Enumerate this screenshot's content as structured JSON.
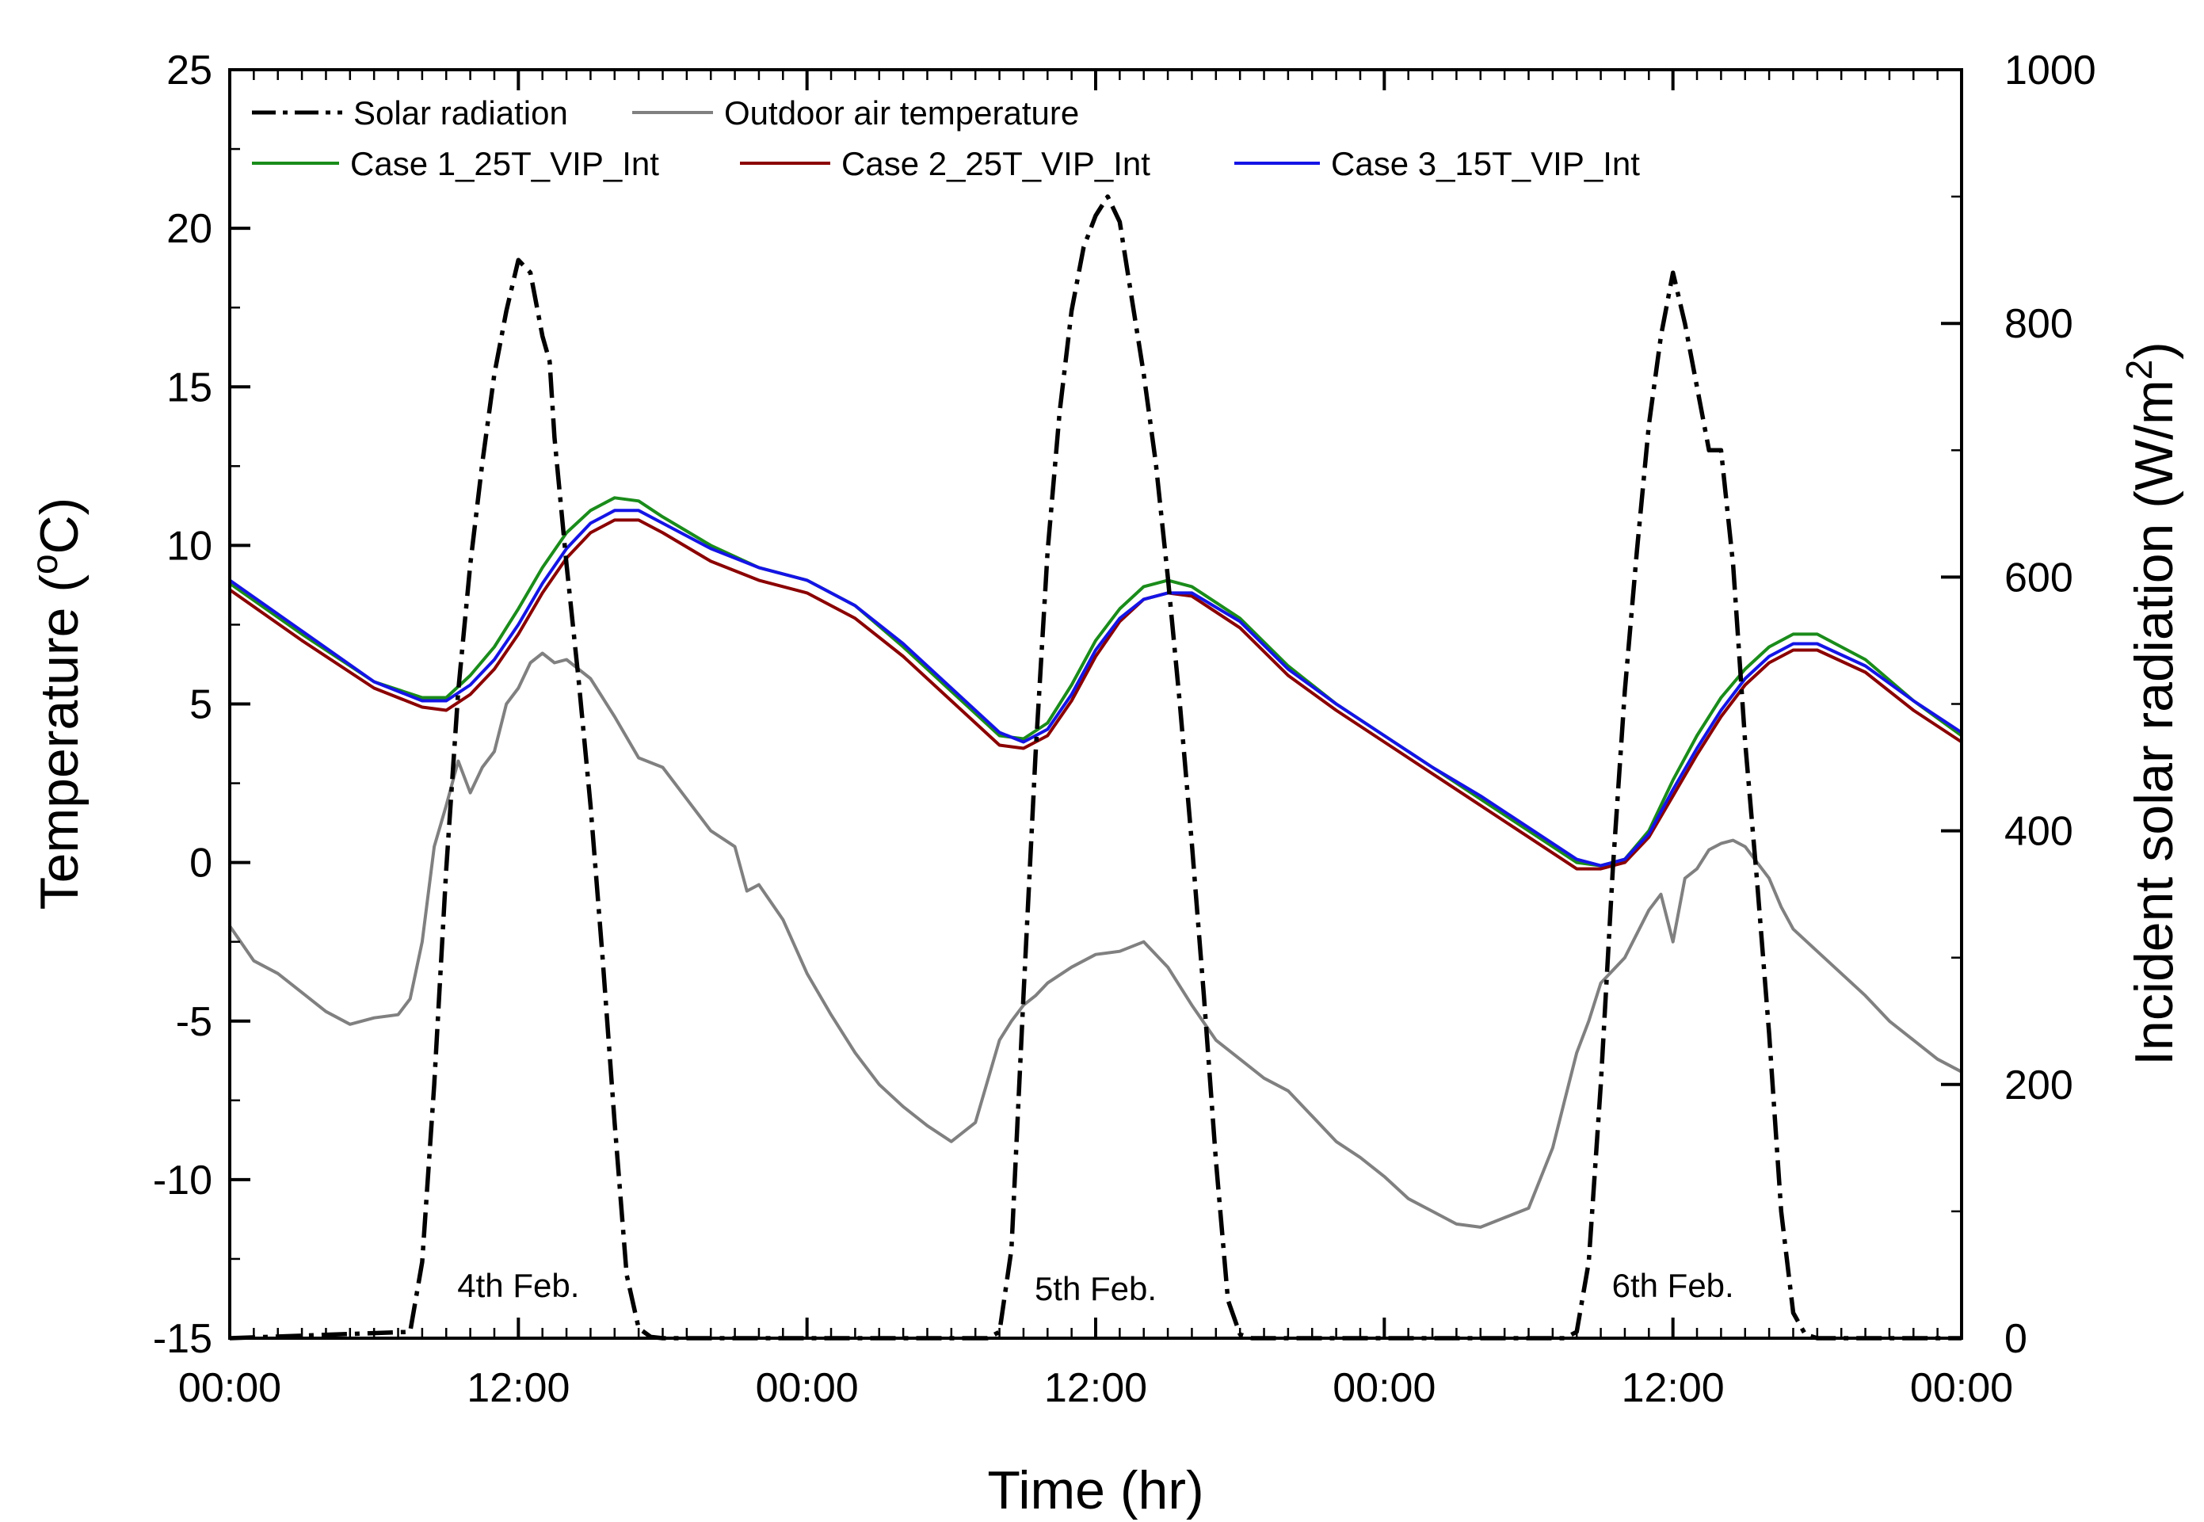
{
  "chart_data": {
    "type": "line",
    "title": "",
    "xlabel": "Time (hr)",
    "ylabel": "Temperature (°C)",
    "ylabel_parts": {
      "prefix": "Temperature (",
      "sup": "o",
      "suffix": "C)"
    },
    "y2label": "Incident solar radiation (W/m2)",
    "y2label_parts": {
      "prefix": "Incident solar radiation (W/m",
      "sup": "2",
      "suffix": ")"
    },
    "xlim": [
      0,
      72
    ],
    "ylim": [
      -15,
      25
    ],
    "y2lim": [
      0,
      1000
    ],
    "x_ticks": [
      0,
      12,
      24,
      36,
      48,
      60,
      72
    ],
    "x_tick_labels": [
      "00:00",
      "12:00",
      "00:00",
      "12:00",
      "00:00",
      "12:00",
      "00:00"
    ],
    "y_ticks": [
      -15,
      -10,
      -5,
      0,
      5,
      10,
      15,
      20,
      25
    ],
    "y_tick_labels": [
      "-15",
      "-10",
      "-5",
      "0",
      "5",
      "10",
      "15",
      "20",
      "25"
    ],
    "y2_ticks": [
      0,
      200,
      400,
      600,
      800,
      1000
    ],
    "y2_tick_labels": [
      "0",
      "200",
      "400",
      "600",
      "800",
      "1000"
    ],
    "grid": false,
    "legend_position": "top-left",
    "annotations": [
      {
        "text": "4th Feb.",
        "x": 12,
        "y": -13.7
      },
      {
        "text": "5th Feb.",
        "x": 36,
        "y": -13.8
      },
      {
        "text": "6th Feb.",
        "x": 60,
        "y": -13.7
      }
    ],
    "series": [
      {
        "name": "Solar radiation",
        "axis": "right",
        "color": "#000000",
        "style": "dash-dot",
        "x": [
          0,
          7.5,
          8,
          8.5,
          9,
          9.5,
          10,
          10.5,
          11,
          11.5,
          12,
          12.5,
          13,
          13.3,
          13.5,
          14,
          14.5,
          15,
          15.5,
          16,
          16.5,
          17,
          17.5,
          18,
          18.5,
          31.5,
          32,
          32.5,
          33,
          33.5,
          34,
          34.5,
          35,
          35.5,
          36,
          36.5,
          37,
          37.5,
          38,
          38.5,
          39,
          39.5,
          40,
          40.5,
          41,
          41.5,
          42,
          42.5,
          55.5,
          56,
          56.5,
          57,
          57.5,
          58,
          58.5,
          59,
          59.5,
          60,
          60.5,
          61,
          61.5,
          62,
          62.5,
          63,
          63.5,
          64,
          64.5,
          65,
          65.5,
          66,
          66.5,
          72
        ],
        "y": [
          0,
          5,
          60,
          200,
          370,
          510,
          610,
          690,
          760,
          810,
          850,
          840,
          790,
          770,
          710,
          610,
          520,
          420,
          300,
          170,
          50,
          8,
          1,
          0,
          0,
          0,
          5,
          70,
          270,
          460,
          620,
          730,
          810,
          860,
          885,
          900,
          880,
          820,
          760,
          690,
          600,
          500,
          390,
          270,
          140,
          30,
          3,
          0,
          0,
          5,
          60,
          200,
          370,
          510,
          620,
          720,
          790,
          840,
          800,
          750,
          700,
          700,
          610,
          470,
          360,
          240,
          100,
          20,
          3,
          0,
          0,
          0
        ]
      },
      {
        "name": "Outdoor air temperature",
        "axis": "left",
        "color": "#808080",
        "style": "solid",
        "x": [
          0,
          1,
          2,
          3,
          4,
          5,
          6,
          7,
          7.5,
          8,
          8.5,
          9,
          9.5,
          10,
          10.5,
          11,
          11.5,
          12,
          12.5,
          13,
          13.5,
          14,
          15,
          16,
          17,
          18,
          19,
          20,
          21,
          21.5,
          22,
          23,
          24,
          25,
          26,
          27,
          28,
          29,
          30,
          31,
          32,
          32.5,
          33,
          33.5,
          34,
          35,
          36,
          37,
          38,
          39,
          40,
          41,
          42,
          43,
          44,
          45,
          46,
          47,
          48,
          49,
          50,
          51,
          52,
          53,
          54,
          55,
          55.5,
          56,
          56.5,
          57,
          58,
          59,
          59.5,
          60,
          60.5,
          61,
          61.5,
          62,
          62.5,
          63,
          63.5,
          64,
          64.5,
          65,
          66,
          67,
          68,
          69,
          70,
          71,
          72
        ],
        "y": [
          -2.0,
          -3.1,
          -3.5,
          -4.1,
          -4.7,
          -5.1,
          -4.9,
          -4.8,
          -4.3,
          -2.5,
          0.5,
          1.8,
          3.2,
          2.2,
          3.0,
          3.5,
          5.0,
          5.5,
          6.3,
          6.6,
          6.3,
          6.4,
          5.8,
          4.6,
          3.3,
          3.0,
          2.0,
          1.0,
          0.5,
          -0.9,
          -0.7,
          -1.8,
          -3.5,
          -4.8,
          -6.0,
          -7.0,
          -7.7,
          -8.3,
          -8.8,
          -8.2,
          -5.6,
          -5.0,
          -4.5,
          -4.2,
          -3.8,
          -3.3,
          -2.9,
          -2.8,
          -2.5,
          -3.3,
          -4.5,
          -5.6,
          -6.2,
          -6.8,
          -7.2,
          -8.0,
          -8.8,
          -9.3,
          -9.9,
          -10.6,
          -11.0,
          -11.4,
          -11.5,
          -11.2,
          -10.9,
          -9.0,
          -7.5,
          -6.0,
          -5.0,
          -3.8,
          -3.0,
          -1.5,
          -1.0,
          -2.5,
          -0.5,
          -0.2,
          0.4,
          0.6,
          0.7,
          0.5,
          0,
          -0.5,
          -1.4,
          -2.1,
          -2.8,
          -3.5,
          -4.2,
          -5.0,
          -5.6,
          -6.2,
          -6.6
        ]
      },
      {
        "name": "Case 1_25T_VIP_Int",
        "axis": "left",
        "color": "#1a8c1a",
        "style": "solid",
        "x": [
          0,
          3,
          6,
          8,
          9,
          10,
          11,
          12,
          13,
          14,
          15,
          16,
          17,
          18,
          20,
          22,
          24,
          26,
          28,
          30,
          32,
          33,
          34,
          35,
          36,
          37,
          38,
          39,
          40,
          42,
          44,
          46,
          48,
          50,
          52,
          54,
          56,
          57,
          58,
          59,
          60,
          61,
          62,
          63,
          64,
          65,
          66,
          68,
          70,
          72
        ],
        "y": [
          8.8,
          7.2,
          5.7,
          5.2,
          5.2,
          5.9,
          6.8,
          8.0,
          9.3,
          10.4,
          11.1,
          11.5,
          11.4,
          10.9,
          10.0,
          9.3,
          8.9,
          8.1,
          6.8,
          5.4,
          4.0,
          3.9,
          4.4,
          5.6,
          7.0,
          8.0,
          8.7,
          8.9,
          8.7,
          7.7,
          6.2,
          5.0,
          4.0,
          3.0,
          2.0,
          1.0,
          0,
          -0.1,
          0.1,
          1.0,
          2.6,
          4.0,
          5.2,
          6.1,
          6.8,
          7.2,
          7.2,
          6.4,
          5.1,
          4.0
        ]
      },
      {
        "name": "Case 2_25T_VIP_Int",
        "axis": "left",
        "color": "#8b0000",
        "style": "solid",
        "x": [
          0,
          3,
          6,
          8,
          9,
          10,
          11,
          12,
          13,
          14,
          15,
          16,
          17,
          18,
          20,
          22,
          24,
          26,
          28,
          30,
          32,
          33,
          34,
          35,
          36,
          37,
          38,
          39,
          40,
          42,
          44,
          46,
          48,
          50,
          52,
          54,
          56,
          57,
          58,
          59,
          60,
          61,
          62,
          63,
          64,
          65,
          66,
          68,
          70,
          72
        ],
        "y": [
          8.6,
          7.0,
          5.5,
          4.9,
          4.8,
          5.3,
          6.1,
          7.2,
          8.5,
          9.6,
          10.4,
          10.8,
          10.8,
          10.4,
          9.5,
          8.9,
          8.5,
          7.7,
          6.5,
          5.1,
          3.7,
          3.6,
          4.0,
          5.1,
          6.5,
          7.6,
          8.3,
          8.5,
          8.4,
          7.4,
          5.9,
          4.8,
          3.8,
          2.8,
          1.8,
          0.8,
          -0.2,
          -0.2,
          0,
          0.8,
          2.1,
          3.4,
          4.6,
          5.6,
          6.3,
          6.7,
          6.7,
          6.0,
          4.8,
          3.8
        ]
      },
      {
        "name": "Case 3_15T_VIP_Int",
        "axis": "left",
        "color": "#1414e6",
        "style": "solid",
        "x": [
          0,
          3,
          6,
          8,
          9,
          10,
          11,
          12,
          13,
          14,
          15,
          16,
          17,
          18,
          20,
          22,
          24,
          26,
          28,
          30,
          32,
          33,
          34,
          35,
          36,
          37,
          38,
          39,
          40,
          42,
          44,
          46,
          48,
          50,
          52,
          54,
          56,
          57,
          58,
          59,
          60,
          61,
          62,
          63,
          64,
          65,
          66,
          68,
          70,
          72
        ],
        "y": [
          8.9,
          7.3,
          5.7,
          5.1,
          5.1,
          5.6,
          6.4,
          7.5,
          8.8,
          9.9,
          10.7,
          11.1,
          11.1,
          10.7,
          9.9,
          9.3,
          8.9,
          8.1,
          6.9,
          5.5,
          4.1,
          3.8,
          4.2,
          5.3,
          6.7,
          7.7,
          8.3,
          8.5,
          8.5,
          7.6,
          6.1,
          5.0,
          4.0,
          3.0,
          2.1,
          1.1,
          0.1,
          -0.1,
          0.1,
          0.9,
          2.3,
          3.6,
          4.8,
          5.8,
          6.5,
          6.9,
          6.9,
          6.2,
          5.1,
          4.1
        ]
      }
    ]
  }
}
